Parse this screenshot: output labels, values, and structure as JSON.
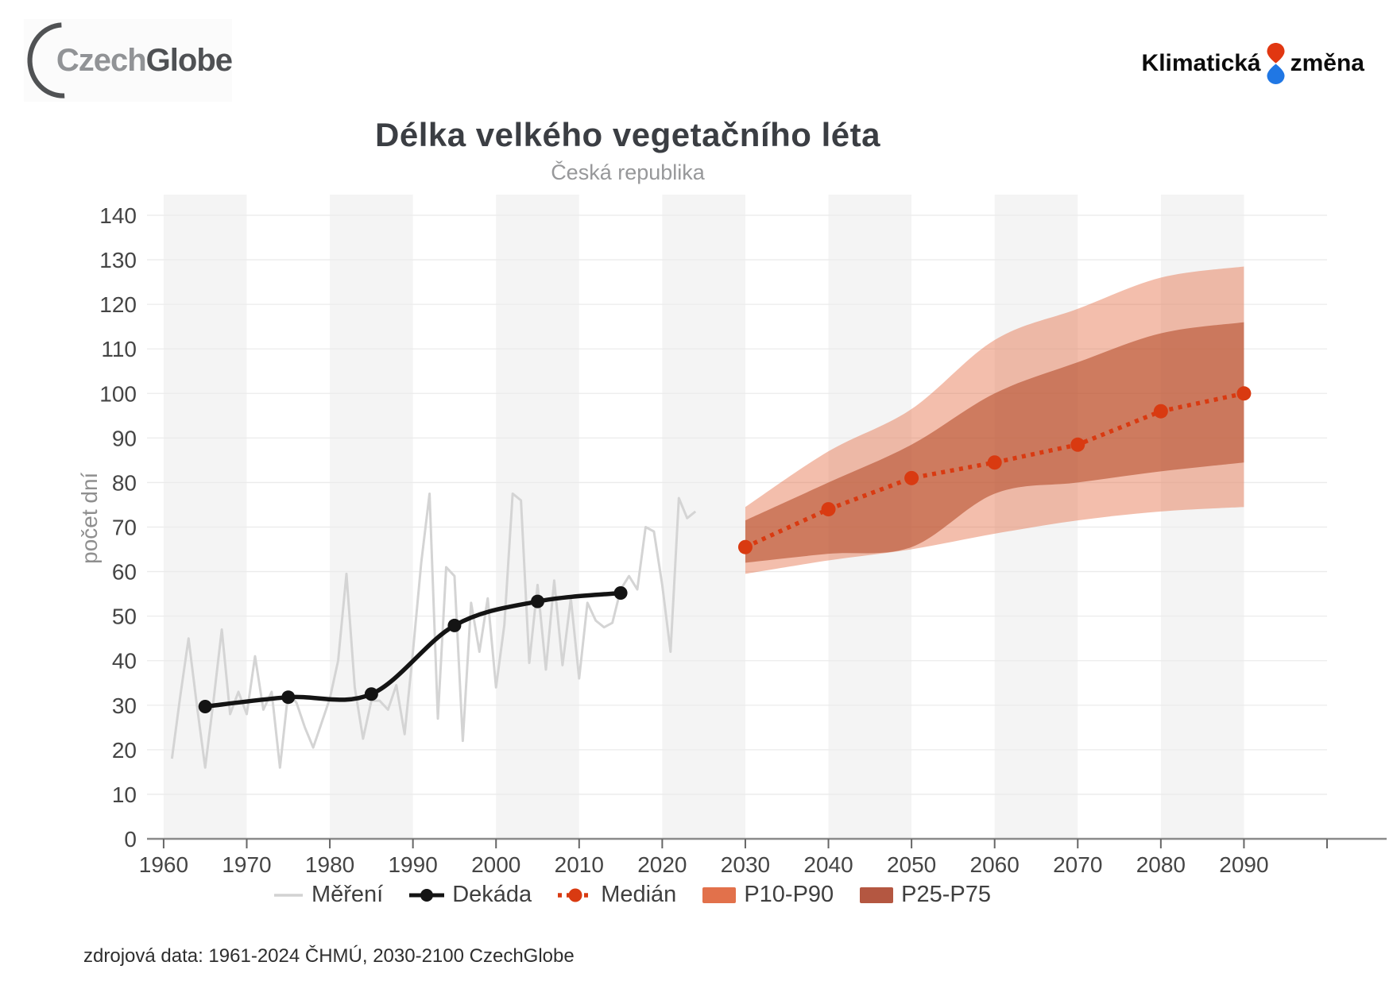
{
  "header": {
    "logo_czech": "Czech",
    "logo_globe": "Globe",
    "brand_left": "Klimatická",
    "brand_right": "změna"
  },
  "chart": {
    "title": "Délka velkého vegetačního léta",
    "subtitle": "Česká republika",
    "ylabel": "počet dní"
  },
  "legend": {
    "items": [
      {
        "label": "Měření",
        "type": "line",
        "color": "#d2d2d2"
      },
      {
        "label": "Dekáda",
        "type": "line-marker",
        "color": "#141414"
      },
      {
        "label": "Medián",
        "type": "dotted-marker",
        "color": "#d93a11"
      },
      {
        "label": "P10-P90",
        "type": "swatch",
        "color": "#e2714b"
      },
      {
        "label": "P25-P75",
        "type": "swatch",
        "color": "#b45741"
      }
    ]
  },
  "source": {
    "text": "zdrojová data: 1961-2024 ČHMÚ, 2030-2100 CzechGlobe"
  },
  "colors": {
    "accent_red": "#d93a11",
    "band_light_fill": "#e2653a",
    "band_dark_fill": "#b34a28",
    "measurement_gray": "#d4d4d4",
    "decade_black": "#141414",
    "stripe_gray": "#f4f4f4",
    "grid_gray": "#ebebeb",
    "axis_gray": "#8a8a8a",
    "logo_drop_red": "#e13711",
    "logo_drop_blue": "#2077e4"
  },
  "chart_data": {
    "type": "line",
    "title": "Délka velkého vegetačního léta",
    "subtitle": "Česká republika",
    "xlabel": "",
    "ylabel": "počet dní",
    "xlim": [
      1958,
      2100
    ],
    "ylim": [
      0,
      140
    ],
    "x_ticks": [
      1960,
      1970,
      1980,
      1990,
      2000,
      2010,
      2020,
      2030,
      2040,
      2050,
      2060,
      2070,
      2080,
      2090
    ],
    "y_ticks": [
      0,
      10,
      20,
      30,
      40,
      50,
      60,
      70,
      80,
      90,
      100,
      110,
      120,
      130,
      140
    ],
    "grid": true,
    "legend_position": "bottom",
    "background_stripes": {
      "start_years": [
        1960,
        1980,
        2000,
        2020,
        2040,
        2060,
        2080
      ],
      "width_years": 10,
      "color": "#f4f4f4"
    },
    "series": [
      {
        "name": "Měření",
        "type": "line",
        "color": "#d4d4d4",
        "width": 3,
        "x_start": 1961,
        "x_step": 1,
        "values": [
          18,
          32,
          45,
          30,
          16,
          31,
          47,
          28,
          33,
          28,
          41,
          29,
          33,
          16,
          33,
          30.5,
          25,
          20.5,
          26,
          31.5,
          40,
          59.5,
          34,
          22.5,
          31,
          31,
          29,
          34.5,
          23.5,
          42,
          62,
          77.5,
          27,
          61,
          59,
          22,
          53,
          42,
          54,
          34,
          48,
          77.5,
          76,
          39.5,
          57,
          38,
          58,
          39,
          54,
          36,
          53,
          49,
          47.5,
          48.5,
          56,
          59,
          56,
          70,
          69,
          57,
          42,
          76.5,
          72,
          73.5
        ]
      },
      {
        "name": "Dekáda",
        "type": "line-marker",
        "color": "#141414",
        "width": 5.5,
        "smooth": true,
        "x": [
          1965,
          1975,
          1985,
          1995,
          2005,
          2015
        ],
        "values": [
          29.7,
          31.8,
          32.5,
          47.9,
          53.3,
          55.2
        ]
      },
      {
        "name": "Medián",
        "type": "dotted-marker",
        "color": "#d93a11",
        "width": 5.5,
        "x": [
          2030,
          2040,
          2050,
          2060,
          2070,
          2080,
          2090
        ],
        "values": [
          65.5,
          74,
          81,
          84.5,
          88.5,
          96,
          100
        ]
      },
      {
        "name": "P10-P90",
        "type": "band",
        "fill": "#e2653a",
        "fill_opacity": 0.42,
        "x": [
          2030,
          2040,
          2050,
          2060,
          2070,
          2080,
          2090
        ],
        "lower": [
          59.5,
          62.5,
          65,
          68.5,
          71.5,
          73.5,
          74.5
        ],
        "upper": [
          74.5,
          87,
          96.5,
          112,
          119,
          126,
          128.5
        ]
      },
      {
        "name": "P25-P75",
        "type": "band",
        "fill": "#b34a28",
        "fill_opacity": 0.58,
        "x": [
          2030,
          2040,
          2050,
          2060,
          2070,
          2080,
          2090
        ],
        "lower": [
          62,
          64,
          65.5,
          77.5,
          80,
          82.5,
          84.5
        ],
        "upper": [
          71.5,
          80,
          88.5,
          100,
          107,
          113.5,
          116
        ]
      }
    ]
  }
}
